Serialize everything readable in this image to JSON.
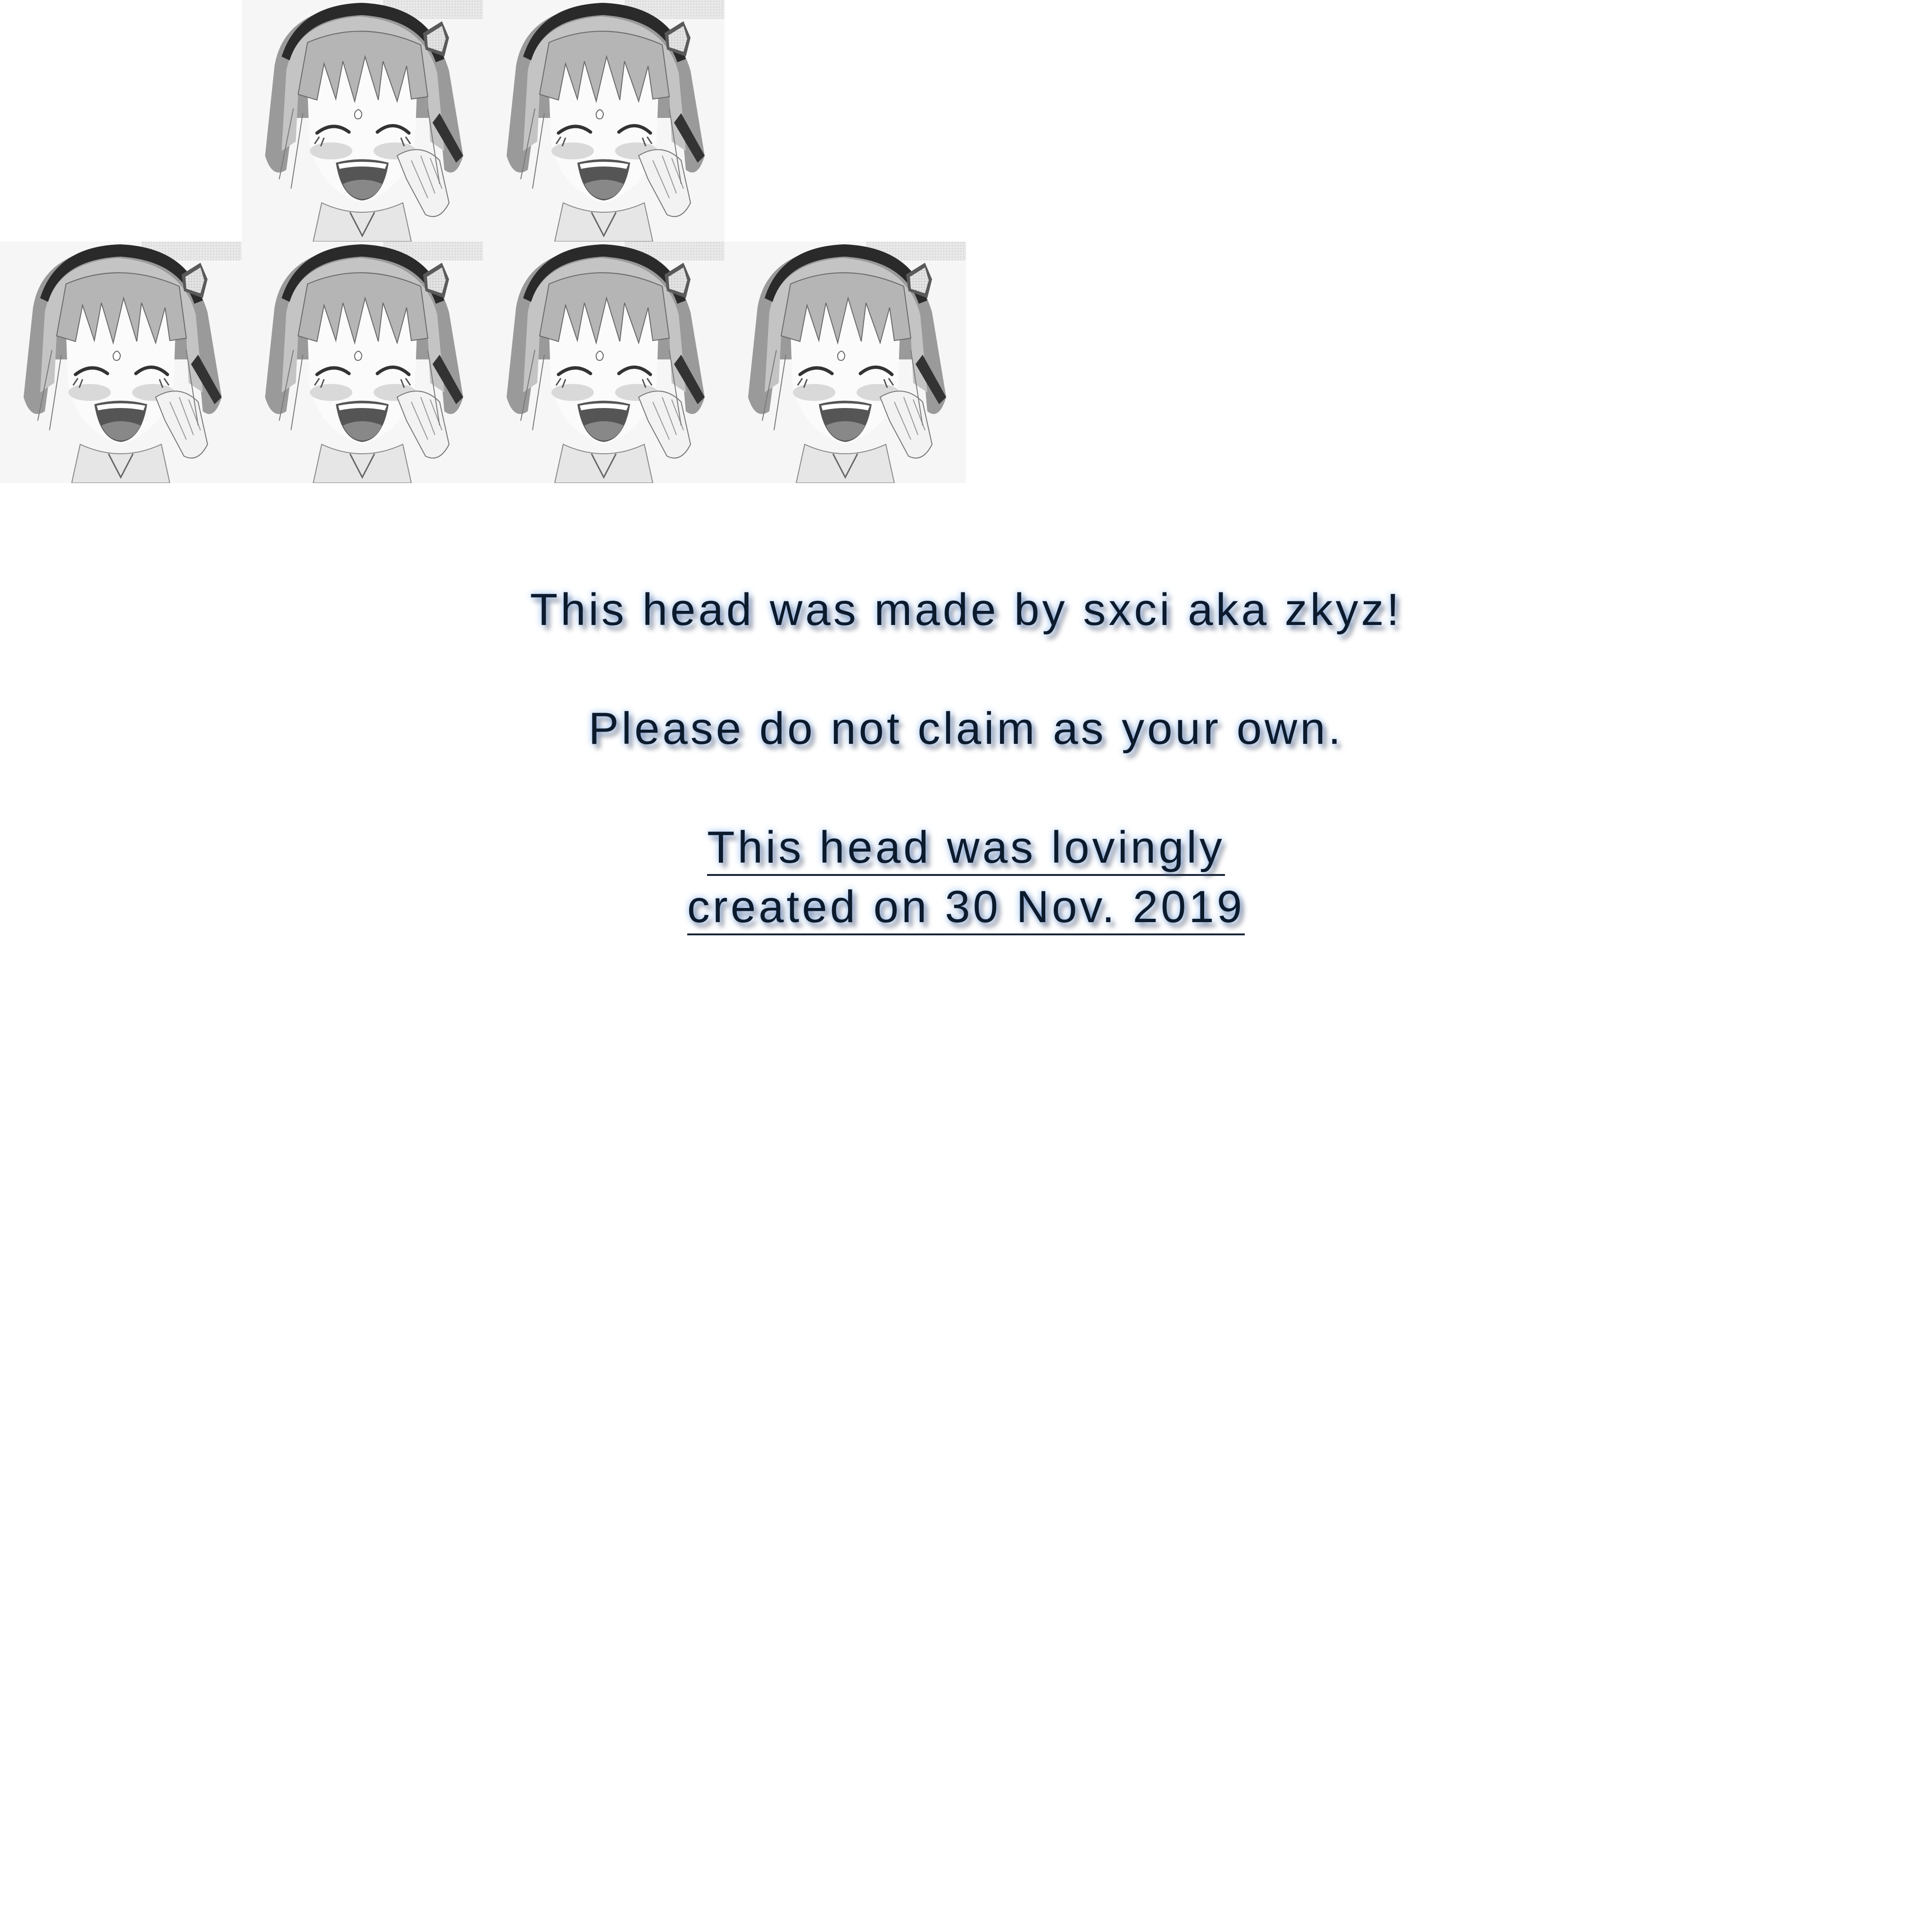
{
  "tiles": [
    {
      "row": "top",
      "face": "anime-girl-face"
    },
    {
      "row": "top",
      "face": "anime-girl-face"
    },
    {
      "row": "bottom",
      "face": "anime-girl-face"
    },
    {
      "row": "bottom",
      "face": "anime-girl-face"
    },
    {
      "row": "bottom",
      "face": "anime-girl-face"
    },
    {
      "row": "bottom",
      "face": "anime-girl-face"
    }
  ],
  "colors": {
    "text": "#0c1a2c",
    "glow": "#6ea5eb",
    "hair_band": "#2a2a2a",
    "tile_bg": "#f4f4f4"
  },
  "credits": {
    "line1": "This head was made by sxci aka zkyz!",
    "line2": "Please do not claim as your own.",
    "line3a": "This head was lovingly",
    "line3b": "created on 30 Nov. 2019"
  }
}
